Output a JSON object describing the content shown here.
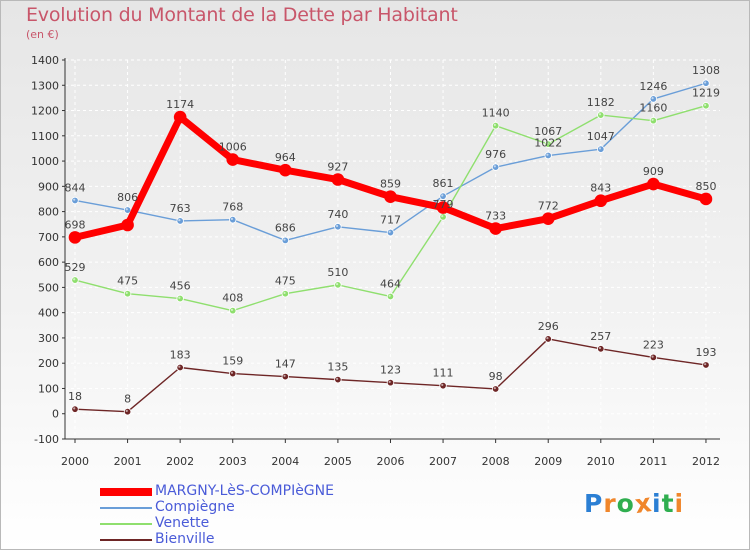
{
  "chart_data": {
    "type": "line",
    "title": "Evolution du Montant de la Dette par Habitant",
    "subtitle": "(en €)",
    "x": [
      "2000",
      "2001",
      "2002",
      "2003",
      "2004",
      "2005",
      "2006",
      "2007",
      "2008",
      "2009",
      "2010",
      "2011",
      "2012"
    ],
    "ylim": [
      -100,
      1400
    ],
    "yticks": [
      -100,
      0,
      100,
      200,
      300,
      400,
      500,
      600,
      700,
      800,
      900,
      1000,
      1100,
      1200,
      1300,
      1400
    ],
    "grid": true,
    "legend_position": "bottom-left",
    "series": [
      {
        "name": "MARGNY-LèS-COMPIèGNE",
        "color": "#ff0000",
        "width": 7,
        "marker": 11,
        "values": [
          698,
          747,
          1174,
          1006,
          964,
          927,
          859,
          816,
          733,
          772,
          843,
          909,
          850
        ],
        "labels": [
          "698",
          "",
          "1174",
          "1006",
          "964",
          "927",
          "859",
          "",
          "733",
          "772",
          "843",
          "909",
          "850"
        ]
      },
      {
        "name": "Compiègne",
        "color": "#6a9ed8",
        "width": 1.4,
        "marker": 5,
        "values": [
          844,
          806,
          763,
          768,
          686,
          740,
          717,
          861,
          976,
          1022,
          1047,
          1246,
          1308
        ],
        "labels": [
          "844",
          "806",
          "763",
          "768",
          "686",
          "740",
          "717",
          "861",
          "976",
          "1022",
          "1047",
          "1246",
          "1308"
        ]
      },
      {
        "name": "Venette",
        "color": "#8fdf6e",
        "width": 1.4,
        "marker": 5,
        "values": [
          529,
          475,
          456,
          408,
          475,
          510,
          464,
          779,
          1140,
          1067,
          1182,
          1160,
          1219
        ],
        "labels": [
          "529",
          "475",
          "456",
          "408",
          "475",
          "510",
          "464",
          "779",
          "1140",
          "1067",
          "1182",
          "1160",
          "1219"
        ]
      },
      {
        "name": "Bienville",
        "color": "#6e2626",
        "width": 1.4,
        "marker": 5,
        "values": [
          18,
          8,
          183,
          159,
          147,
          135,
          123,
          111,
          98,
          296,
          257,
          223,
          193
        ],
        "labels": [
          "18",
          "8",
          "183",
          "159",
          "147",
          "135",
          "123",
          "111",
          "98",
          "296",
          "257",
          "223",
          "193"
        ]
      }
    ]
  },
  "brand": {
    "letters": [
      "P",
      "r",
      "o",
      "x",
      "i",
      "t",
      "i"
    ],
    "colors": [
      "#2b7fd4",
      "#f0862b",
      "#2fae4f",
      "#f0862b",
      "#2b7fd4",
      "#2fae4f",
      "#f0862b"
    ]
  }
}
